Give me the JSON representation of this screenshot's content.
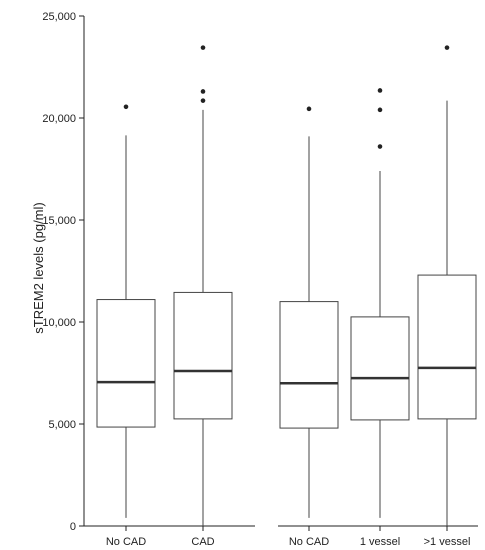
{
  "chart_data": {
    "type": "boxplot",
    "ylabel": "sTREM2 levels (pg/ml)",
    "ylim": [
      0,
      25000
    ],
    "yticks": [
      0,
      5000,
      10000,
      15000,
      20000,
      25000
    ],
    "ytick_labels": [
      "0",
      "5,000",
      "10,000",
      "15,000",
      "20,000",
      "25,000"
    ],
    "panels": [
      {
        "groups": [
          {
            "label": "No CAD",
            "min": 400,
            "q1": 4850,
            "median": 7050,
            "q3": 11100,
            "max": 19150,
            "outliers": [
              20550
            ]
          },
          {
            "label": "CAD",
            "min": 0,
            "q1": 5250,
            "median": 7600,
            "q3": 11450,
            "max": 20400,
            "outliers": [
              20850,
              21300,
              23450
            ]
          }
        ]
      },
      {
        "groups": [
          {
            "label": "No CAD",
            "min": 400,
            "q1": 4800,
            "median": 7000,
            "q3": 11000,
            "max": 19100,
            "outliers": [
              20450
            ]
          },
          {
            "label": "1 vessel",
            "min": 400,
            "q1": 5200,
            "median": 7250,
            "q3": 10250,
            "max": 17400,
            "outliers": [
              18600,
              20400,
              21350
            ]
          },
          {
            "label": ">1 vessel",
            "min": 0,
            "q1": 5250,
            "median": 7750,
            "q3": 12300,
            "max": 20850,
            "outliers": [
              23450
            ]
          }
        ]
      }
    ]
  }
}
